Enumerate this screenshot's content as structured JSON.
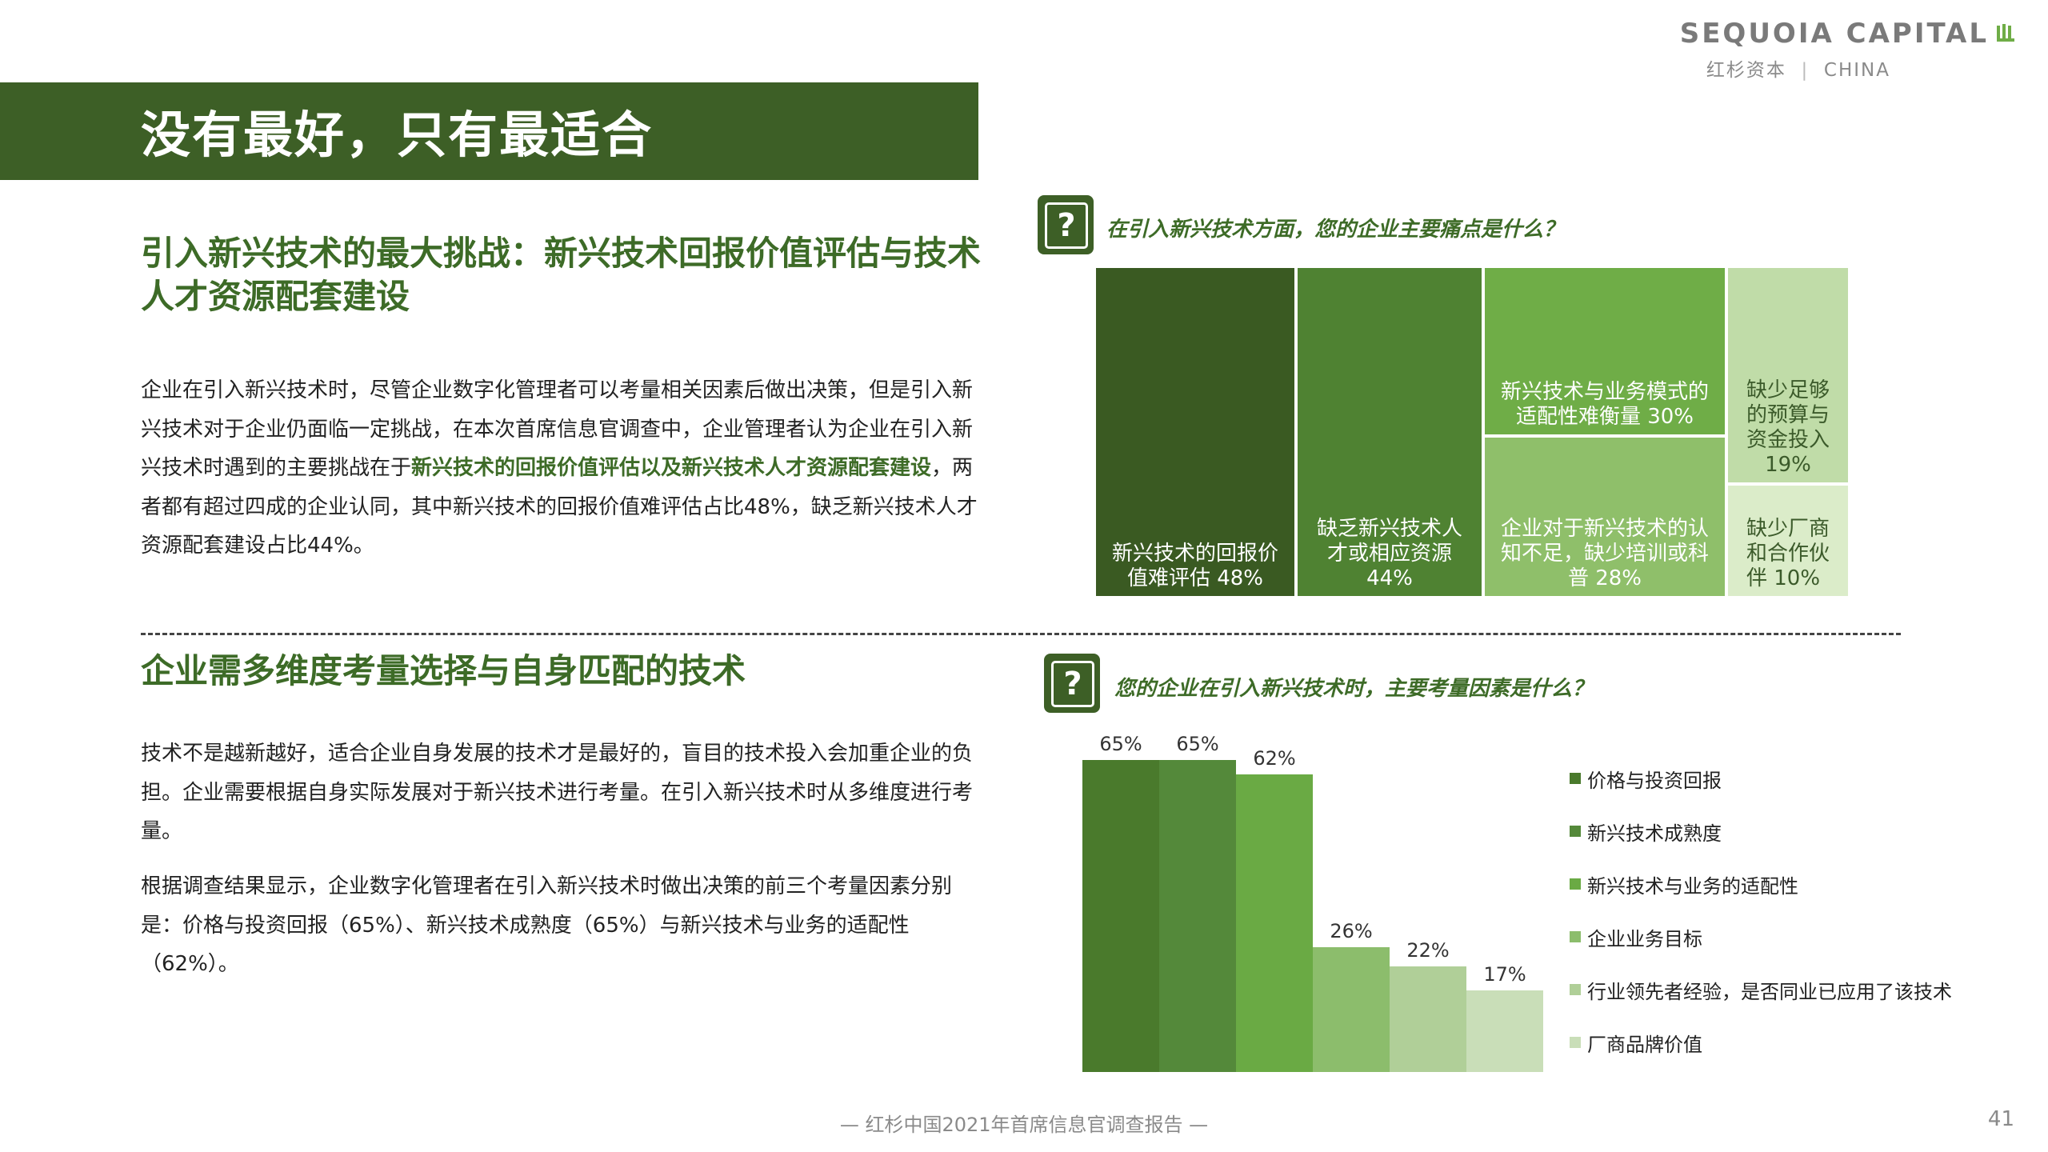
{
  "brand": {
    "name": "SEQUOIA CAPITAL",
    "sub_cn": "红杉资本",
    "sub_en": "CHINA"
  },
  "page_title": "没有最好，只有最适合",
  "section1": {
    "title": "引入新兴技术的最大挑战：新兴技术回报价值评估与技术人才资源配套建设",
    "para_part1": "企业在引入新兴技术时，尽管企业数字化管理者可以考量相关因素后做出决策，但是引入新兴技术对于企业仍面临一定挑战，在本次首席信息官调查中，企业管理者认为企业在引入新兴技术时遇到的主要挑战在于",
    "para_bold": "新兴技术的回报价值评估以及新兴技术人才资源配套建设",
    "para_part2": "，两者都有超过四成的企业认同，其中新兴技术的回报价值难评估占比48%，缺乏新兴技术人才资源配套建设占比44%。"
  },
  "section2": {
    "title": "企业需多维度考量选择与自身匹配的技术",
    "para1": "技术不是越新越好，适合企业自身发展的技术才是最好的，盲目的技术投入会加重企业的负担。企业需要根据自身实际发展对于新兴技术进行考量。在引入新兴技术时从多维度进行考量。",
    "para2": "根据调查结果显示，企业数字化管理者在引入新兴技术时做出决策的前三个考量因素分别是：价格与投资回报（65%）、新兴技术成熟度（65%）与新兴技术与业务的适配性（62%）。"
  },
  "question1": {
    "icon": "question-mark-icon",
    "text": "在引入新兴技术方面，您的企业主要痛点是什么？"
  },
  "question2": {
    "icon": "question-mark-icon",
    "text": "您的企业在引入新兴技术时，主要考量因素是什么？"
  },
  "chart_data": [
    {
      "type": "treemap",
      "title": "在引入新兴技术方面，您的企业主要痛点是什么？",
      "items": [
        {
          "label": "新兴技术的回报价值难评估",
          "value": 48,
          "value_label": "48%",
          "color": "#3a5a22"
        },
        {
          "label": "缺乏新兴技术人才或相应资源",
          "value": 44,
          "value_label": "44%",
          "color": "#4f8232"
        },
        {
          "label": "新兴技术与业务模式的适配性难衡量",
          "value": 30,
          "value_label": "30%",
          "color": "#6fad47"
        },
        {
          "label": "企业对于新兴技术的认知不足，缺少培训或科普",
          "value": 28,
          "value_label": "28%",
          "color": "#8fbf6a"
        },
        {
          "label": "缺少足够的预算与资金投入",
          "value": 19,
          "value_label": "19%",
          "color": "#c0dca8"
        },
        {
          "label": "缺少厂商和合作伙伴",
          "value": 10,
          "value_label": "10%",
          "color": "#dbecc9"
        }
      ]
    },
    {
      "type": "bar",
      "title": "您的企业在引入新兴技术时，主要考量因素是什么？",
      "categories": [
        "价格与投资回报",
        "新兴技术成熟度",
        "新兴技术与业务的适配性",
        "企业业务目标",
        "行业领先者经验，是否同业已应用了该技术",
        "厂商品牌价值"
      ],
      "values": [
        65,
        65,
        62,
        26,
        22,
        17
      ],
      "value_labels": [
        "65%",
        "65%",
        "62%",
        "26%",
        "22%",
        "17%"
      ],
      "colors": [
        "#4a7a2c",
        "#54893a",
        "#6aaa44",
        "#8cbd6c",
        "#b0cf98",
        "#c9deb8"
      ],
      "ylim": [
        0,
        65
      ],
      "legend": "right"
    }
  ],
  "treemap_labels": {
    "t1a": "新兴技术的回报价",
    "t1b": "值难评估 48%",
    "t2a": "缺乏新兴技术人",
    "t2b": "才或相应资源",
    "t2c": "44%",
    "t3a": "新兴技术与业务模式的",
    "t3b": "适配性难衡量 30%",
    "t4a": "企业对于新兴技术的认",
    "t4b": "知不足，缺少培训或科",
    "t4c": "普 28%",
    "t5a": "缺少足够",
    "t5b": "的预算与",
    "t5c": "资金投入",
    "t5d": "19%",
    "t6a": "缺少厂商",
    "t6b": "和合作伙",
    "t6c": "伴 10%"
  },
  "footer": "— 红杉中国2021年首席信息官调查报告 —",
  "page_number": "41"
}
